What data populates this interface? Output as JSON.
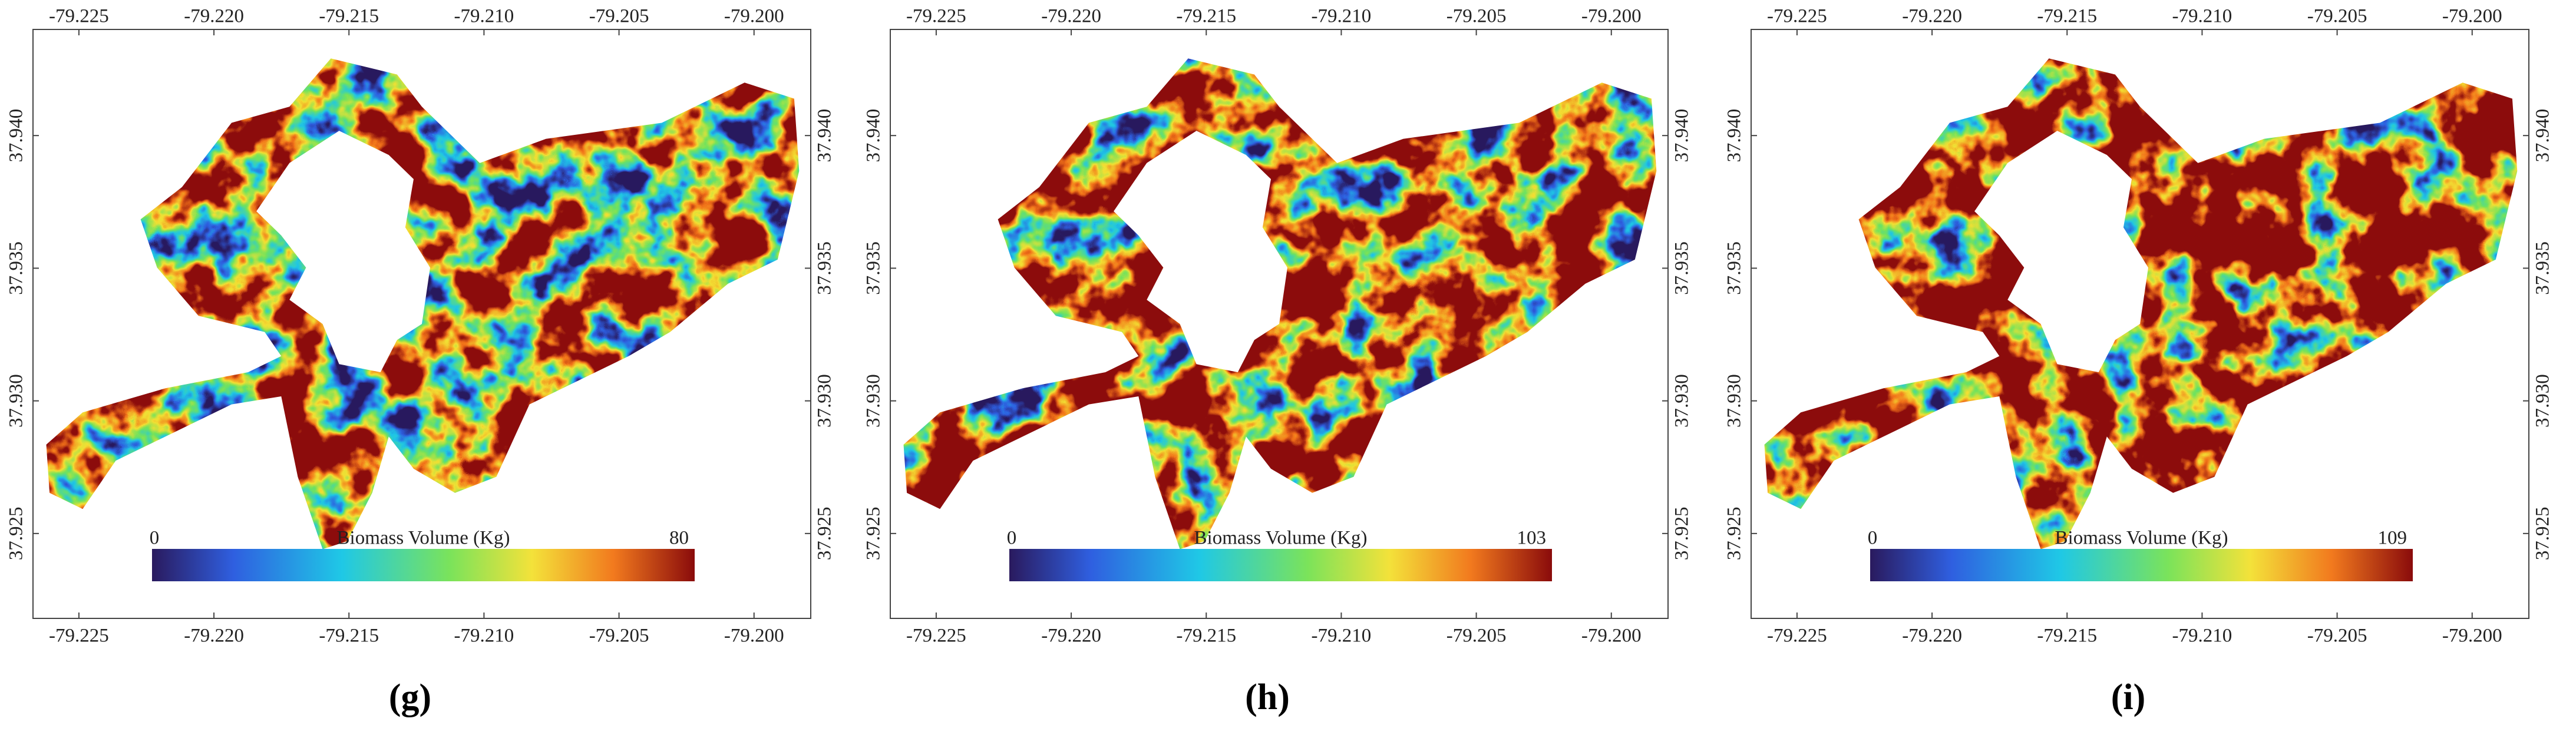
{
  "axes": {
    "xlim": [
      -79.2267,
      -79.1979
    ],
    "ylim": [
      37.9218,
      37.944
    ],
    "xticks": [
      -79.225,
      {
        "value": -79.22,
        "label": "-79.220"
      },
      -79.215,
      {
        "value": -79.21,
        "label": "-79.210"
      },
      -79.205,
      {
        "value": -79.2,
        "label": "-79.200"
      }
    ],
    "yticks": [
      37.925,
      {
        "value": 37.93,
        "label": "37.930"
      },
      37.935,
      {
        "value": 37.94,
        "label": "37.940"
      }
    ]
  },
  "panels": [
    {
      "label": "(g)",
      "colorbar": {
        "title": "Biomass Volume (Kg)",
        "min": 0,
        "max": 80
      }
    },
    {
      "label": "(h)",
      "colorbar": {
        "title": "Biomass Volume (Kg)",
        "min": 0,
        "max": 103
      }
    },
    {
      "label": "(i)",
      "colorbar": {
        "title": "Biomass Volume (Kg)",
        "min": 0,
        "max": 109
      }
    }
  ]
}
